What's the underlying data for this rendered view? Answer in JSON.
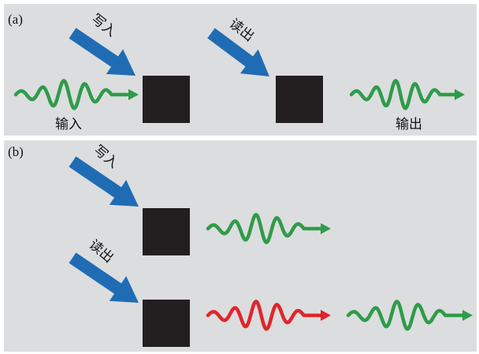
{
  "panels": [
    {
      "label": "(a)",
      "write": "写入",
      "read": "读出",
      "input": "输入",
      "output": "输出"
    },
    {
      "label": "(b)",
      "write": "写入",
      "read": "读出"
    }
  ]
}
